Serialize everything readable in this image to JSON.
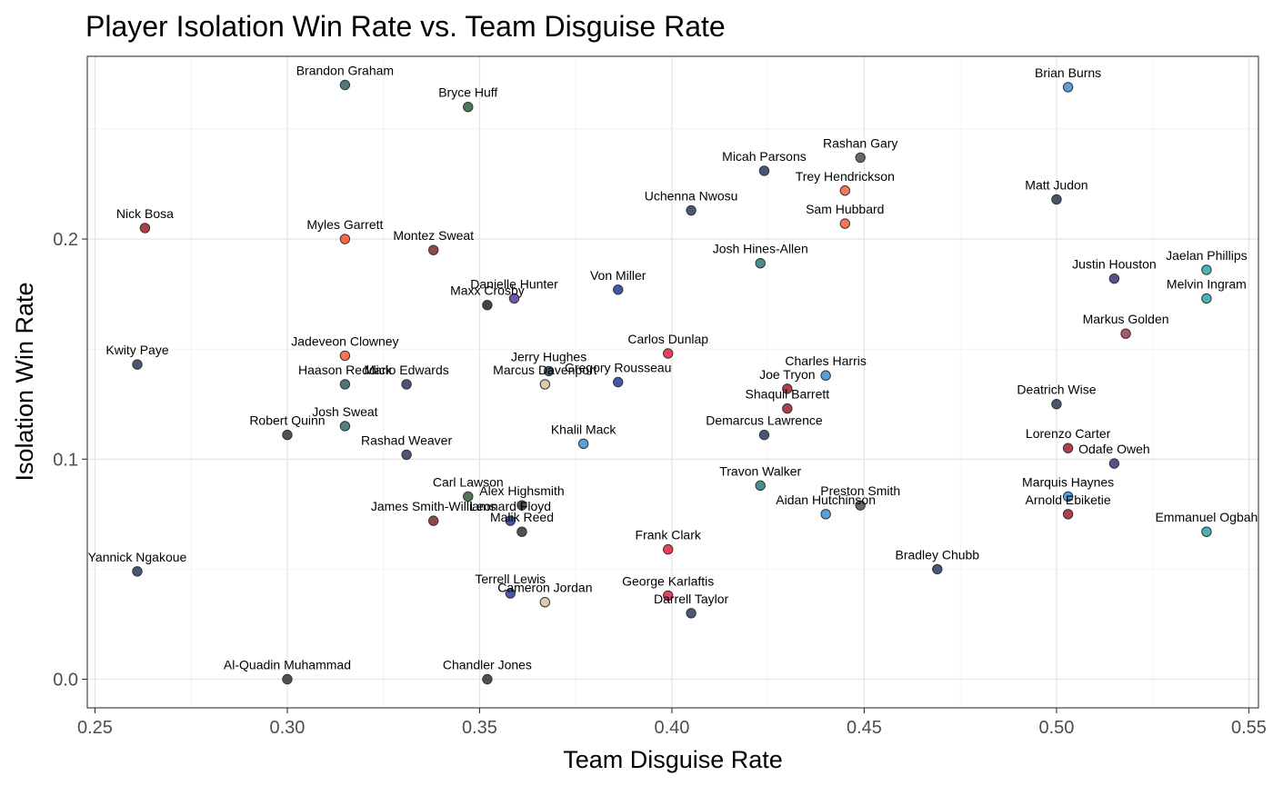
{
  "chart_data": {
    "type": "scatter",
    "title": "Player Isolation Win Rate vs. Team Disguise Rate",
    "xlabel": "Team Disguise Rate",
    "ylabel": "Isolation Win Rate",
    "xlim": [
      0.248,
      0.5525
    ],
    "ylim": [
      -0.013,
      0.283
    ],
    "x_ticks": [
      0.25,
      0.3,
      0.35,
      0.4,
      0.45,
      0.5,
      0.55
    ],
    "x_tick_labels": [
      "0.25",
      "0.30",
      "0.35",
      "0.40",
      "0.45",
      "0.50",
      "0.55"
    ],
    "y_ticks": [
      0.0,
      0.1,
      0.2
    ],
    "y_tick_labels": [
      "0.0",
      "0.1",
      "0.2"
    ],
    "grid": true,
    "legend": "none",
    "points": [
      {
        "label": "Brandon Graham",
        "x": 0.315,
        "y": 0.27,
        "color": "#2f5f5f"
      },
      {
        "label": "Bryce Huff",
        "x": 0.347,
        "y": 0.26,
        "color": "#2e5e3e"
      },
      {
        "label": "Brian Burns",
        "x": 0.503,
        "y": 0.269,
        "color": "#3b8fd6"
      },
      {
        "label": "Rashan Gary",
        "x": 0.449,
        "y": 0.237,
        "color": "#4a4f48"
      },
      {
        "label": "Micah Parsons",
        "x": 0.424,
        "y": 0.231,
        "color": "#2a3a5c"
      },
      {
        "label": "Trey Hendrickson",
        "x": 0.445,
        "y": 0.222,
        "color": "#fa5a3c"
      },
      {
        "label": "Matt Judon",
        "x": 0.5,
        "y": 0.218,
        "color": "#2b3550"
      },
      {
        "label": "Uchenna Nwosu",
        "x": 0.405,
        "y": 0.213,
        "color": "#2b3a58"
      },
      {
        "label": "Sam Hubbard",
        "x": 0.445,
        "y": 0.207,
        "color": "#fb5d3a"
      },
      {
        "label": "Nick Bosa",
        "x": 0.263,
        "y": 0.205,
        "color": "#a51c2c"
      },
      {
        "label": "Myles Garrett",
        "x": 0.315,
        "y": 0.2,
        "color": "#fd4b26"
      },
      {
        "label": "Montez Sweat",
        "x": 0.338,
        "y": 0.195,
        "color": "#7a2a2a"
      },
      {
        "label": "Josh Hines-Allen",
        "x": 0.423,
        "y": 0.189,
        "color": "#2b7a7d"
      },
      {
        "label": "Jaelan Phillips",
        "x": 0.539,
        "y": 0.186,
        "color": "#2fa3a8"
      },
      {
        "label": "Justin Houston",
        "x": 0.515,
        "y": 0.182,
        "color": "#3e2f7c"
      },
      {
        "label": "Von Miller",
        "x": 0.386,
        "y": 0.177,
        "color": "#23399b"
      },
      {
        "label": "Melvin Ingram",
        "x": 0.539,
        "y": 0.173,
        "color": "#2fa3a8"
      },
      {
        "label": "Danielle Hunter",
        "x": 0.359,
        "y": 0.173,
        "color": "#5b3a98"
      },
      {
        "label": "Maxx Crosby",
        "x": 0.352,
        "y": 0.17,
        "color": "#222222"
      },
      {
        "label": "Markus Golden",
        "x": 0.518,
        "y": 0.157,
        "color": "#a23a4a"
      },
      {
        "label": "Carlos Dunlap",
        "x": 0.399,
        "y": 0.148,
        "color": "#e51f3f"
      },
      {
        "label": "Jadeveon Clowney",
        "x": 0.315,
        "y": 0.147,
        "color": "#f95d35"
      },
      {
        "label": "Kwity Paye",
        "x": 0.261,
        "y": 0.143,
        "color": "#2a3a5c"
      },
      {
        "label": "Jerry Hughes",
        "x": 0.368,
        "y": 0.14,
        "color": "#2b3f52"
      },
      {
        "label": "Charles Harris",
        "x": 0.44,
        "y": 0.138,
        "color": "#3b8fd6"
      },
      {
        "label": "Gregory Rousseau",
        "x": 0.386,
        "y": 0.135,
        "color": "#23399b"
      },
      {
        "label": "Haason Reddick",
        "x": 0.315,
        "y": 0.134,
        "color": "#2f5f5f"
      },
      {
        "label": "Mario Edwards",
        "x": 0.331,
        "y": 0.134,
        "color": "#2b3a58"
      },
      {
        "label": "Marcus Davenport",
        "x": 0.367,
        "y": 0.134,
        "color": "#d8c39a"
      },
      {
        "label": "Joe Tryon",
        "x": 0.43,
        "y": 0.132,
        "color": "#a51c2c"
      },
      {
        "label": "Deatrich Wise",
        "x": 0.5,
        "y": 0.125,
        "color": "#2b3a58"
      },
      {
        "label": "Shaquil Barrett",
        "x": 0.43,
        "y": 0.123,
        "color": "#a51c2c"
      },
      {
        "label": "Josh Sweat",
        "x": 0.315,
        "y": 0.115,
        "color": "#2f6a6a"
      },
      {
        "label": "Robert Quinn",
        "x": 0.3,
        "y": 0.111,
        "color": "#333333"
      },
      {
        "label": "Demarcus Lawrence",
        "x": 0.424,
        "y": 0.111,
        "color": "#2a3a5c"
      },
      {
        "label": "Khalil Mack",
        "x": 0.377,
        "y": 0.107,
        "color": "#3b8fd6"
      },
      {
        "label": "Lorenzo Carter",
        "x": 0.503,
        "y": 0.105,
        "color": "#a51c2c"
      },
      {
        "label": "Rashad Weaver",
        "x": 0.331,
        "y": 0.102,
        "color": "#2b3a58"
      },
      {
        "label": "Odafe Oweh",
        "x": 0.515,
        "y": 0.098,
        "color": "#3e2f7c"
      },
      {
        "label": "Travon Walker",
        "x": 0.423,
        "y": 0.088,
        "color": "#2b7a7d"
      },
      {
        "label": "Carl Lawson",
        "x": 0.347,
        "y": 0.083,
        "color": "#2e5e3e"
      },
      {
        "label": "Marquis Haynes",
        "x": 0.503,
        "y": 0.083,
        "color": "#3b8fd6"
      },
      {
        "label": "Alex Highsmith",
        "x": 0.361,
        "y": 0.079,
        "color": "#333333"
      },
      {
        "label": "Preston Smith",
        "x": 0.449,
        "y": 0.079,
        "color": "#4a4f48"
      },
      {
        "label": "Aidan Hutchinson",
        "x": 0.44,
        "y": 0.075,
        "color": "#3b8fd6"
      },
      {
        "label": "Arnold Ebiketie",
        "x": 0.503,
        "y": 0.075,
        "color": "#a51c2c"
      },
      {
        "label": "Leonard Floyd",
        "x": 0.358,
        "y": 0.072,
        "color": "#23399b"
      },
      {
        "label": "James Smith-Williams",
        "x": 0.338,
        "y": 0.072,
        "color": "#7a2a2a"
      },
      {
        "label": "Malik Reed",
        "x": 0.361,
        "y": 0.067,
        "color": "#333333"
      },
      {
        "label": "Emmanuel Ogbah",
        "x": 0.539,
        "y": 0.067,
        "color": "#2fa3a8"
      },
      {
        "label": "Frank Clark",
        "x": 0.399,
        "y": 0.059,
        "color": "#e51f3f"
      },
      {
        "label": "Bradley Chubb",
        "x": 0.469,
        "y": 0.05,
        "color": "#2a3a5c"
      },
      {
        "label": "Yannick Ngakoue",
        "x": 0.261,
        "y": 0.049,
        "color": "#2a3a5c"
      },
      {
        "label": "Terrell Lewis",
        "x": 0.358,
        "y": 0.039,
        "color": "#23399b"
      },
      {
        "label": "George Karlaftis",
        "x": 0.399,
        "y": 0.038,
        "color": "#e51f3f"
      },
      {
        "label": "Cameron Jordan",
        "x": 0.367,
        "y": 0.035,
        "color": "#d8c39a"
      },
      {
        "label": "Darrell Taylor",
        "x": 0.405,
        "y": 0.03,
        "color": "#2b3a58"
      },
      {
        "label": "Al-Quadin Muhammad",
        "x": 0.3,
        "y": 0.0,
        "color": "#333333"
      },
      {
        "label": "Chandler Jones",
        "x": 0.352,
        "y": 0.0,
        "color": "#333333"
      }
    ]
  }
}
